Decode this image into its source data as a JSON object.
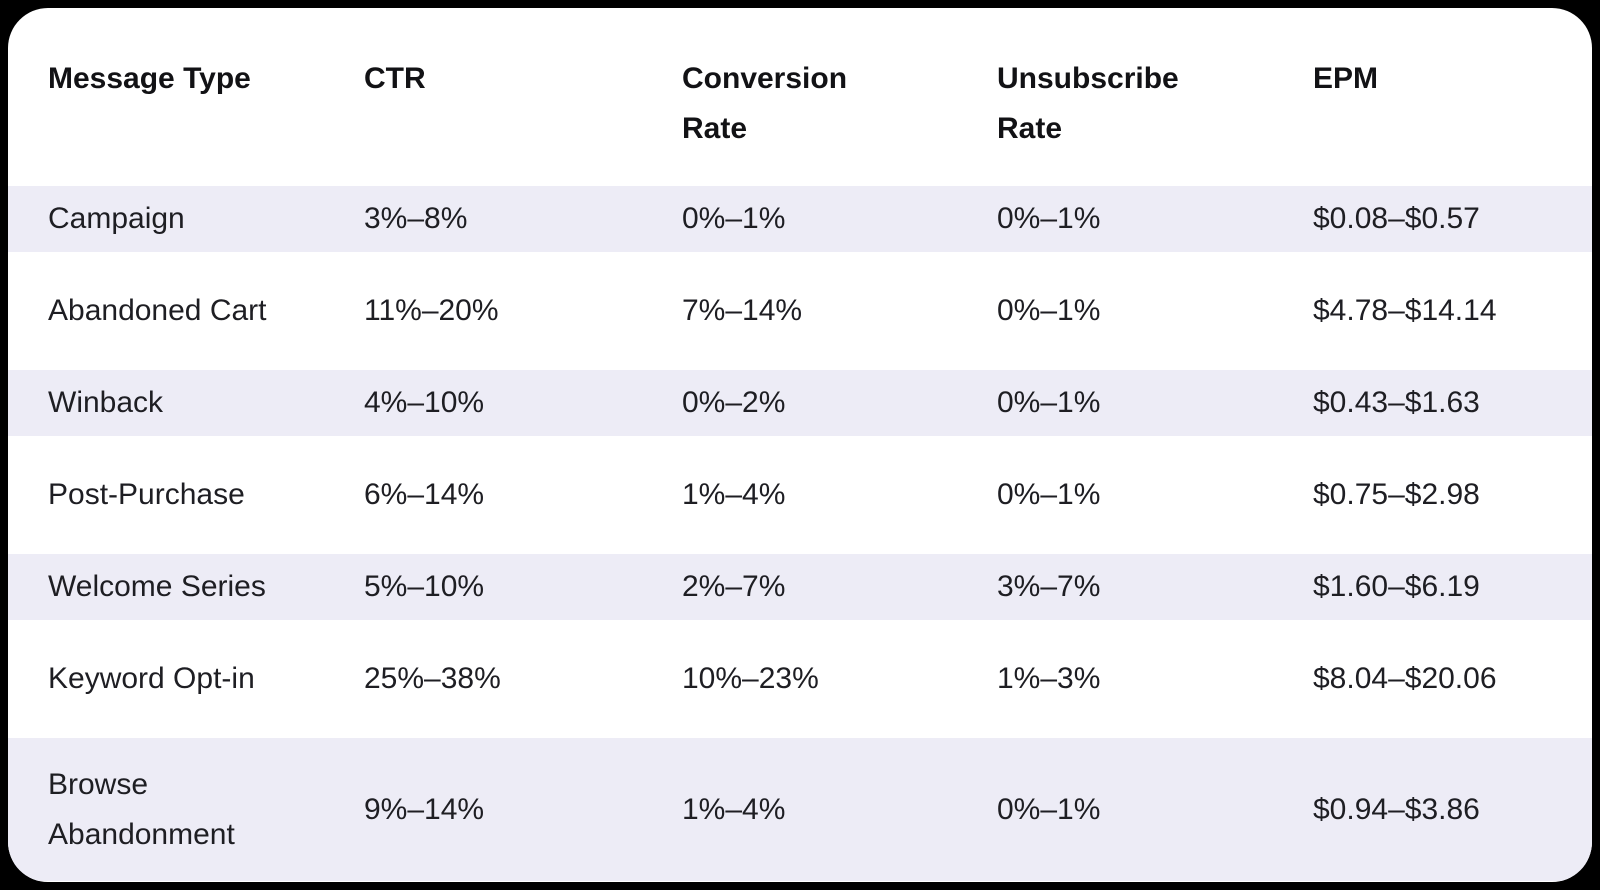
{
  "table": {
    "columns": [
      "Message Type",
      "CTR",
      "Conversion\nRate",
      "Unsubscribe\nRate",
      "EPM"
    ],
    "rows": [
      {
        "message_type": "Campaign",
        "ctr": "3%–8%",
        "conversion_rate": "0%–1%",
        "unsubscribe_rate": "0%–1%",
        "epm": "$0.08–$0.57"
      },
      {
        "message_type": "Abandoned Cart",
        "ctr": "11%–20%",
        "conversion_rate": "7%–14%",
        "unsubscribe_rate": "0%–1%",
        "epm": "$4.78–$14.14"
      },
      {
        "message_type": "Winback",
        "ctr": "4%–10%",
        "conversion_rate": "0%–2%",
        "unsubscribe_rate": "0%–1%",
        "epm": "$0.43–$1.63"
      },
      {
        "message_type": "Post-Purchase",
        "ctr": "6%–14%",
        "conversion_rate": "1%–4%",
        "unsubscribe_rate": "0%–1%",
        "epm": "$0.75–$2.98"
      },
      {
        "message_type": "Welcome Series",
        "ctr": "5%–10%",
        "conversion_rate": "2%–7%",
        "unsubscribe_rate": "3%–7%",
        "epm": "$1.60–$6.19"
      },
      {
        "message_type": "Keyword Opt-in",
        "ctr": "25%–38%",
        "conversion_rate": "10%–23%",
        "unsubscribe_rate": "1%–3%",
        "epm": "$8.04–$20.06"
      },
      {
        "message_type": "Browse\nAbandonment",
        "ctr": "9%–14%",
        "conversion_rate": "1%–4%",
        "unsubscribe_rate": "0%–1%",
        "epm": "$0.94–$3.86"
      }
    ]
  },
  "colors": {
    "page_background": "#000000",
    "card_background": "#FFFFFF",
    "stripe": "#EDECF6",
    "header_text": "#121215",
    "body_text": "#1E1E23"
  }
}
